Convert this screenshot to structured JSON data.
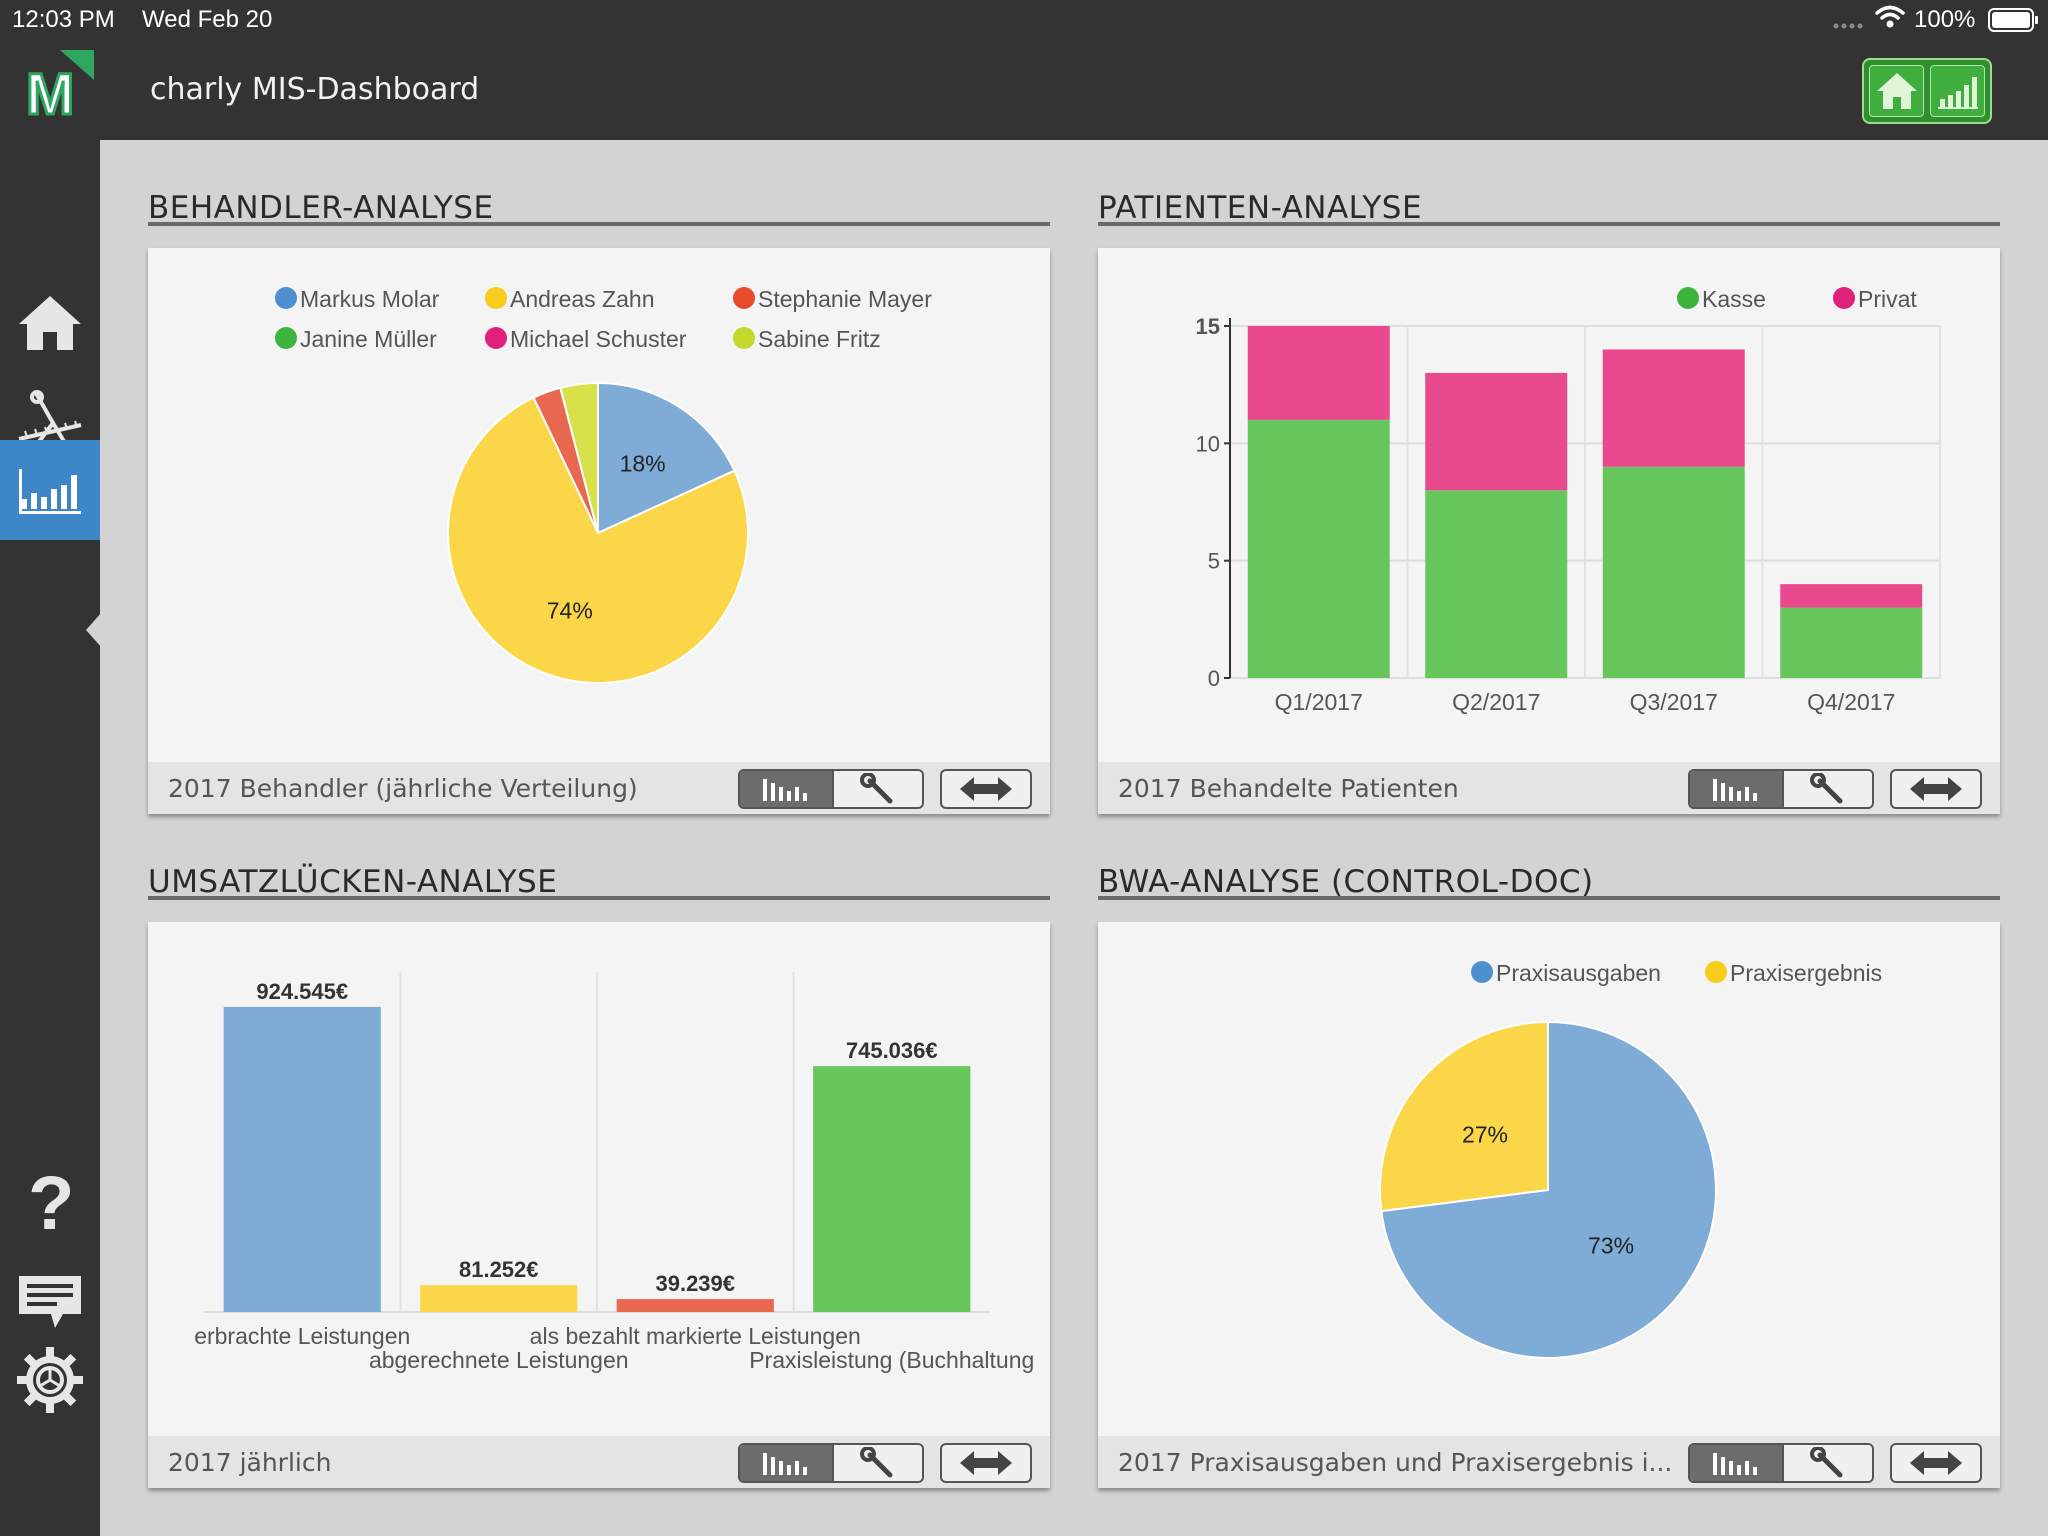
{
  "status_bar": {
    "time": "12:03 PM",
    "date": "Wed Feb 20",
    "battery": "100%"
  },
  "header": {
    "title": "charly MIS-Dashboard",
    "logo_letter": "M"
  },
  "colors": {
    "blue": "#7facd6",
    "yellow": "#fad648",
    "red": "#e8694f",
    "lime": "#d8e04a",
    "green": "#68c75c",
    "magenta": "#e84a8d",
    "dot_blue": "#4d8fcf",
    "dot_yellow": "#f7cc1a",
    "dot_red": "#e64b2a",
    "dot_green": "#3cb53c",
    "dot_magenta": "#e0217a",
    "dot_lime": "#c3d82a"
  },
  "sidebar": {
    "items": [
      {
        "icon": "home-icon"
      },
      {
        "icon": "tools-icon"
      },
      {
        "icon": "chart-icon",
        "active": true
      },
      {
        "icon": "help-icon"
      },
      {
        "icon": "message-icon"
      },
      {
        "icon": "settings-icon"
      }
    ]
  },
  "panels": {
    "behandler": {
      "title": "BEHANDLER-ANALYSE",
      "footer": "2017  Behandler (jährliche Verteilung)"
    },
    "patienten": {
      "title": "PATIENTEN-ANALYSE",
      "footer": "2017  Behandelte Patienten"
    },
    "umsatz": {
      "title": "UMSATZLÜCKEN-ANALYSE",
      "footer": "2017  jährlich"
    },
    "bwa": {
      "title": "BWA-ANALYSE (CONTROL-DOC)",
      "footer": "2017  Praxisausgaben und Praxisergebnis i..."
    }
  },
  "chart_data": [
    {
      "type": "pie",
      "legend": [
        "Markus Molar",
        "Andreas Zahn",
        "Stephanie Mayer",
        "Janine Müller",
        "Michael Schuster",
        "Sabine Fritz"
      ],
      "legend_colors": [
        "dot_blue",
        "dot_yellow",
        "dot_red",
        "dot_green",
        "dot_magenta",
        "dot_lime"
      ],
      "slices": [
        {
          "name": "Markus Molar",
          "value": 18,
          "label": "18%",
          "color": "blue"
        },
        {
          "name": "Andreas Zahn",
          "value": 74,
          "label": "74%",
          "color": "yellow"
        },
        {
          "name": "Stephanie Mayer",
          "value": 3,
          "label": "",
          "color": "red"
        },
        {
          "name": "Sabine Fritz",
          "value": 4,
          "label": "",
          "color": "lime"
        }
      ],
      "legend_placement": "top"
    },
    {
      "type": "bar",
      "stacked": true,
      "categories": [
        "Q1/2017",
        "Q2/2017",
        "Q3/2017",
        "Q4/2017"
      ],
      "series": [
        {
          "name": "Kasse",
          "values": [
            11,
            8,
            9,
            3
          ],
          "color": "green",
          "legend_color": "dot_green"
        },
        {
          "name": "Privat",
          "values": [
            4,
            5,
            5,
            1
          ],
          "color": "magenta",
          "legend_color": "dot_magenta"
        }
      ],
      "ylim": [
        0,
        15
      ],
      "yticks": [
        "0",
        "5",
        "10",
        "15"
      ],
      "grid": true,
      "legend_placement": "top-right"
    },
    {
      "type": "bar",
      "categories": [
        "erbrachte Leistungen",
        "abgerechnete Leistungen",
        "als bezahlt markierte Leistungen",
        "Praxisleistung (Buchhaltung"
      ],
      "values": [
        924545,
        81252,
        39239,
        745036
      ],
      "value_labels": [
        "924.545€",
        "81.252€",
        "39.239€",
        "745.036€"
      ],
      "colors": [
        "blue",
        "yellow",
        "red",
        "green"
      ],
      "ylim": [
        0,
        1000000
      ]
    },
    {
      "type": "pie",
      "legend": [
        "Praxisausgaben",
        "Praxisergebnis"
      ],
      "legend_colors": [
        "dot_blue",
        "dot_yellow"
      ],
      "slices": [
        {
          "name": "Praxisausgaben",
          "value": 73,
          "label": "73%",
          "color": "blue"
        },
        {
          "name": "Praxisergebnis",
          "value": 27,
          "label": "27%",
          "color": "yellow"
        }
      ],
      "legend_placement": "top"
    }
  ]
}
